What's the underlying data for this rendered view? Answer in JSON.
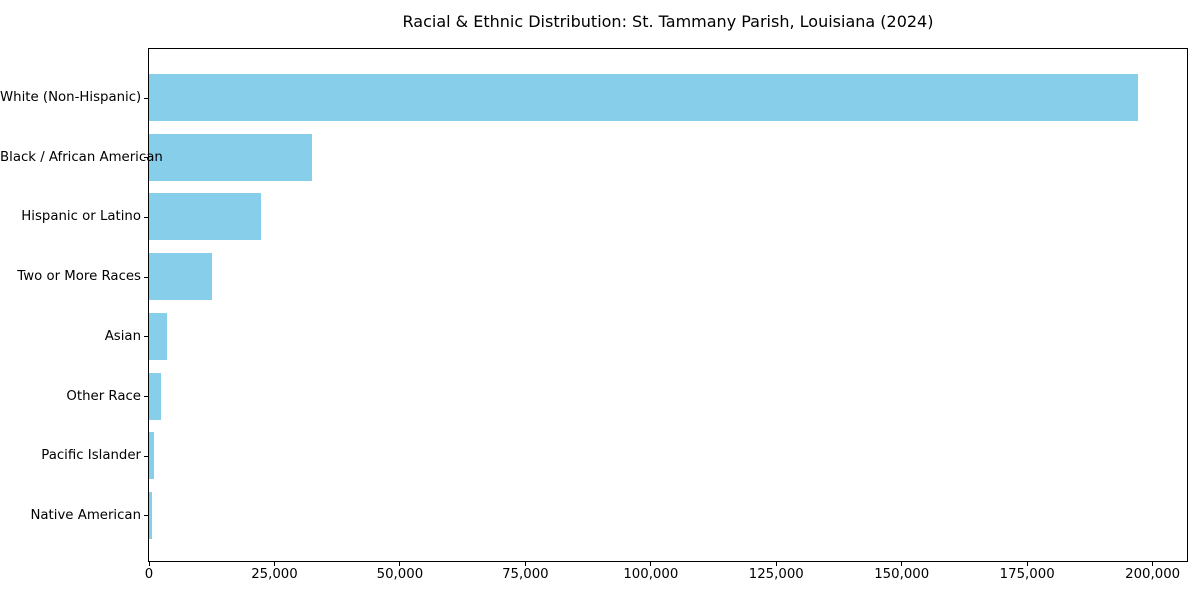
{
  "figure": {
    "title": "Racial & Ethnic Distribution: St. Tammany Parish, Louisiana (2024)"
  },
  "chart_data": {
    "type": "bar",
    "orientation": "horizontal",
    "title": "Racial & Ethnic Distribution: St. Tammany Parish, Louisiana (2024)",
    "categories": [
      "White (Non-Hispanic)",
      "Black / African American",
      "Hispanic or Latino",
      "Two or More Races",
      "Asian",
      "Other Race",
      "Pacific Islander",
      "Native American"
    ],
    "values": [
      197000,
      32500,
      22300,
      12600,
      3600,
      2400,
      900,
      500
    ],
    "xlabel": "",
    "ylabel": "",
    "xlim": [
      0,
      206850
    ],
    "x_ticks": [
      0,
      25000,
      50000,
      75000,
      100000,
      125000,
      150000,
      175000,
      200000
    ],
    "x_tick_labels": [
      "0",
      "25,000",
      "50,000",
      "75,000",
      "100,000",
      "125,000",
      "150,000",
      "175,000",
      "200,000"
    ],
    "bar_color": "#87CEEB",
    "text_color": "#000000",
    "spine_color": "#000000",
    "grid": false,
    "legend": null
  }
}
